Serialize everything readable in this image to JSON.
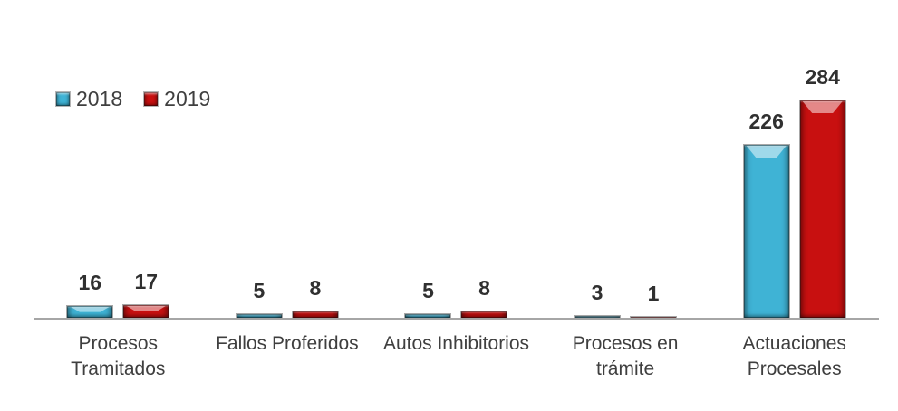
{
  "chart_data": {
    "type": "bar",
    "title": "",
    "xlabel": "",
    "ylabel": "",
    "categories": [
      "Procesos Tramitados",
      "Fallos Proferidos",
      "Autos Inhibitorios",
      "Procesos en trámite",
      "Actuaciones Procesales"
    ],
    "series": [
      {
        "name": "2018",
        "color": "#3FB3D5",
        "values": [
          16,
          5,
          5,
          3,
          226
        ]
      },
      {
        "name": "2019",
        "color": "#C81010",
        "values": [
          17,
          8,
          8,
          1,
          284
        ]
      }
    ],
    "ylim": [
      0,
      300
    ],
    "grid": false,
    "legend_position": "top-left",
    "data_labels": true
  },
  "colors": {
    "series_2018": "#3FB3D5",
    "series_2019": "#C81010",
    "axis_line": "#A6A6A6",
    "category_text": "#3F3F3F",
    "value_text": "#303030",
    "background": "#FFFFFF"
  }
}
